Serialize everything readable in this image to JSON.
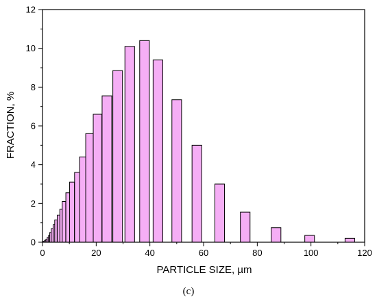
{
  "chart_data": {
    "type": "bar",
    "xlabel": "PARTICLE SIZE, µm",
    "ylabel": "FRACTION, %",
    "xlim": [
      0,
      120
    ],
    "ylim": [
      0,
      12
    ],
    "xticks": [
      0,
      20,
      40,
      60,
      80,
      100,
      120
    ],
    "yticks": [
      0,
      2,
      4,
      6,
      8,
      10,
      12
    ],
    "bar_color": "#f5aef5",
    "bar_edge_color": "#000000",
    "grid": false,
    "series": [
      {
        "x": [
          0.5,
          1.0,
          1.5,
          2.0,
          2.5,
          3.0,
          3.6,
          4.3,
          5.0,
          6.0,
          7.0,
          8.0,
          9.5,
          11.0,
          13.0,
          15.0,
          17.5,
          20.5,
          24.0,
          28.0,
          32.5,
          38.0,
          43.0,
          50.0,
          57.5,
          66.0,
          75.5,
          87.0,
          99.5,
          114.5
        ],
        "width": [
          0.5,
          0.5,
          0.5,
          0.5,
          0.5,
          0.6,
          0.7,
          0.7,
          0.9,
          1.0,
          1.1,
          1.3,
          1.6,
          1.8,
          2.1,
          2.4,
          2.8,
          3.2,
          3.6,
          3.6,
          3.6,
          3.6,
          3.6,
          3.6,
          3.6,
          3.6,
          3.6,
          3.6,
          3.6,
          3.6
        ],
        "values": [
          0.05,
          0.1,
          0.15,
          0.25,
          0.35,
          0.5,
          0.7,
          0.9,
          1.15,
          1.4,
          1.7,
          2.1,
          2.55,
          3.1,
          3.6,
          4.4,
          5.6,
          6.6,
          7.55,
          8.85,
          10.1,
          10.4,
          9.4,
          7.35,
          5.0,
          3.0,
          1.55,
          0.75,
          0.35,
          0.2
        ]
      }
    ]
  },
  "caption": "(c)"
}
